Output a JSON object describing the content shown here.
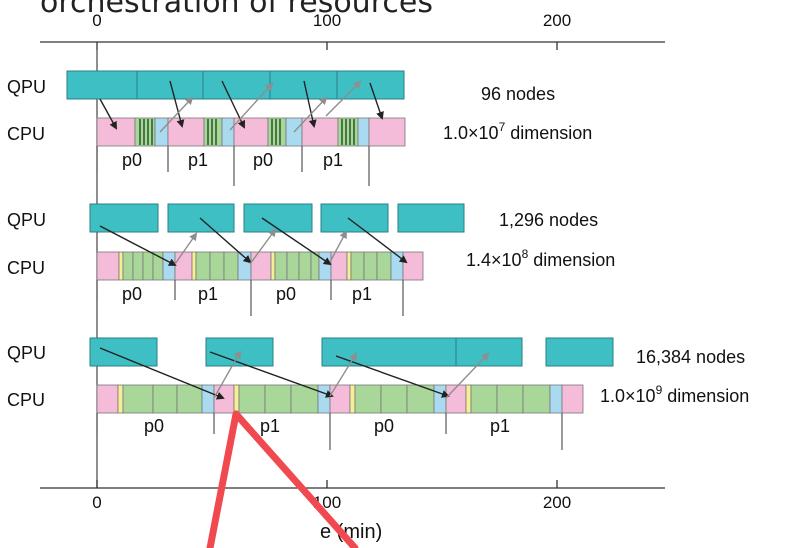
{
  "header": {
    "title": "orchestration of resources"
  },
  "axis": {
    "top_ticks": [
      "0",
      "100",
      "200"
    ],
    "bottom_ticks": [
      "0",
      "100",
      "200"
    ],
    "xlabel": "e (min)"
  },
  "rows": [
    {
      "qpu_label": "QPU",
      "cpu_label": "CPU",
      "nodes": "96 nodes",
      "dim_base": "1.0×10",
      "dim_exp": "7",
      "dim_suffix": " dimension",
      "phases": [
        "p0",
        "p1",
        "p0",
        "p1"
      ]
    },
    {
      "qpu_label": "QPU",
      "cpu_label": "CPU",
      "nodes": "1,296 nodes",
      "dim_base": "1.4×10",
      "dim_exp": "8",
      "dim_suffix": " dimension",
      "phases": [
        "p0",
        "p1",
        "p0",
        "p1"
      ]
    },
    {
      "qpu_label": "QPU",
      "cpu_label": "CPU",
      "nodes": "16,384 nodes",
      "dim_base": "1.0×10",
      "dim_exp": "9",
      "dim_suffix": " dimension",
      "phases": [
        "p0",
        "p1",
        "p0",
        "p1"
      ]
    }
  ],
  "colors": {
    "qpu": "#3ebfc4",
    "cpu_pink": "#f4bcd8",
    "cpu_green": "#a9d79a",
    "cpu_yellow": "#f6ef96",
    "cpu_blue": "#a9daf0",
    "stripe_dark": "#2f5f2f",
    "arrow_black": "#222222",
    "arrow_gray": "#8e8e8e",
    "annotation": "#f04a50"
  }
}
